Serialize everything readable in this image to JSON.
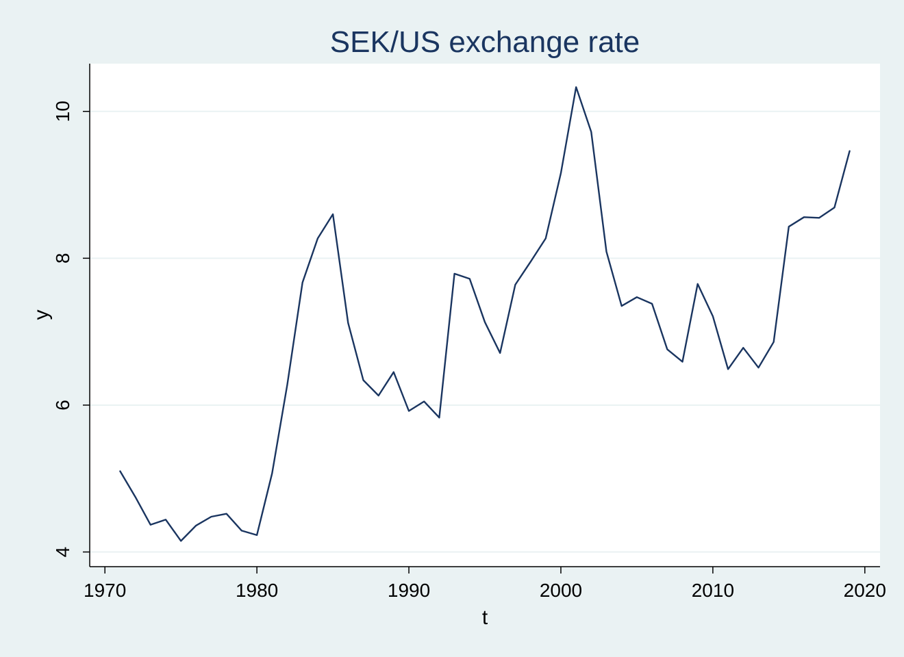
{
  "chart_data": {
    "type": "line",
    "title": "SEK/US exchange rate",
    "xlabel": "t",
    "ylabel": "y",
    "xlim": [
      1969,
      2021
    ],
    "ylim": [
      3.8,
      10.65
    ],
    "xticks": [
      1970,
      1980,
      1990,
      2000,
      2010,
      2020
    ],
    "yticks": [
      4,
      6,
      8,
      10
    ],
    "grid": true,
    "colors": {
      "background": "#eaf2f3",
      "plot_area": "#ffffff",
      "series": "#1a3560",
      "title": "#1a3560"
    },
    "series": [
      {
        "x": [
          1971,
          1972,
          1973,
          1974,
          1975,
          1976,
          1977,
          1978,
          1979,
          1980,
          1981,
          1982,
          1983,
          1984,
          1985,
          1986,
          1987,
          1988,
          1989,
          1990,
          1991,
          1992,
          1993,
          1994,
          1995,
          1996,
          1997,
          1998,
          1999,
          2000,
          2001,
          2002,
          2003,
          2004,
          2005,
          2006,
          2007,
          2008,
          2009,
          2010,
          2011,
          2012,
          2013,
          2014,
          2015,
          2016,
          2017,
          2018,
          2019
        ],
        "y": [
          5.1,
          4.75,
          4.37,
          4.44,
          4.15,
          4.36,
          4.48,
          4.52,
          4.29,
          4.23,
          5.07,
          6.28,
          7.67,
          8.27,
          8.6,
          7.12,
          6.34,
          6.13,
          6.45,
          5.92,
          6.05,
          5.83,
          7.79,
          7.72,
          7.13,
          6.71,
          7.64,
          7.95,
          8.27,
          9.16,
          10.33,
          9.72,
          8.09,
          7.35,
          7.47,
          7.38,
          6.76,
          6.59,
          7.65,
          7.21,
          6.49,
          6.78,
          6.51,
          6.86,
          8.43,
          8.56,
          8.55,
          8.69,
          9.46
        ]
      }
    ]
  }
}
